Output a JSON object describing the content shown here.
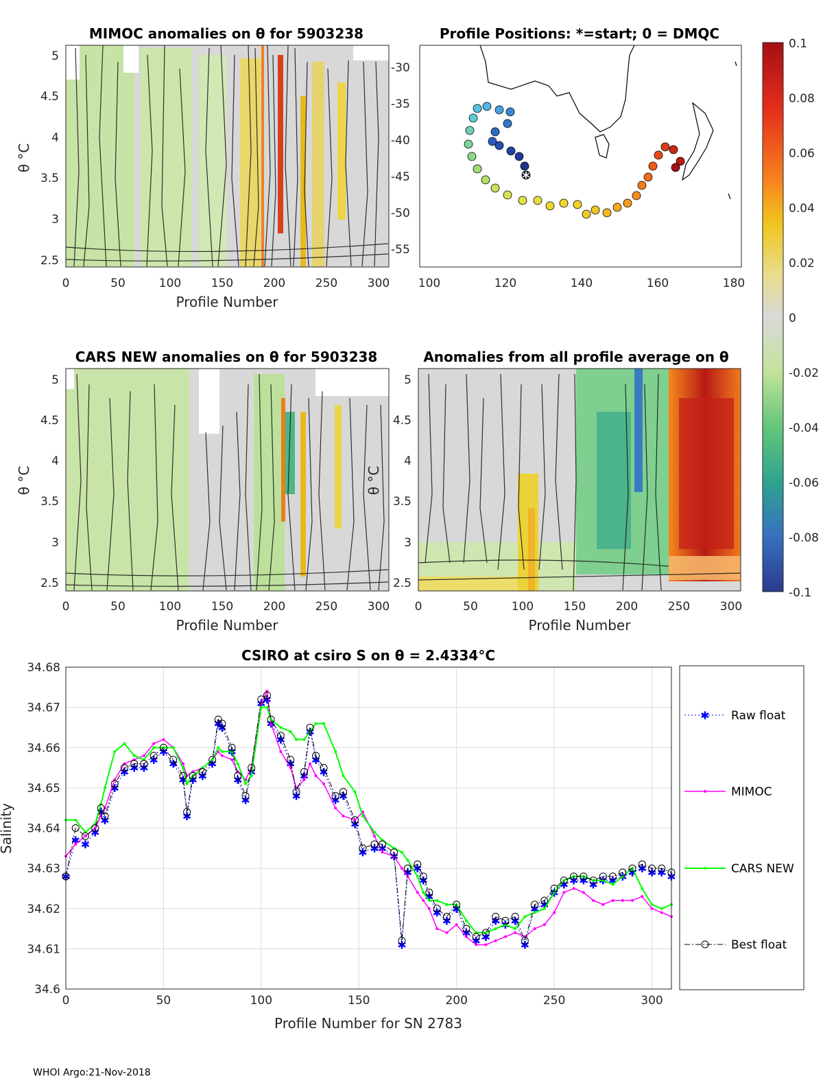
{
  "footer": "WHOI Argo:21-Nov-2018",
  "panels": {
    "mimoc": {
      "title": "MIMOC anomalies on θ  for 5903238",
      "ylabel": "θ °C",
      "xlabel": "Profile Number",
      "xticks": [
        "0",
        "50",
        "100",
        "150",
        "200",
        "250",
        "300"
      ],
      "yticks": [
        "5",
        "4.5",
        "4",
        "3.5",
        "3",
        "2.5"
      ]
    },
    "map": {
      "title": "Profile Positions: *=start; 0 = DMQC",
      "xticks": [
        "100",
        "120",
        "140",
        "160",
        "180"
      ],
      "yticks": [
        "-30",
        "-35",
        "-40",
        "-45",
        "-50",
        "-55"
      ]
    },
    "colorbar": {
      "ticks": [
        "0.1",
        "0.08",
        "0.06",
        "0.04",
        "0.02",
        "0",
        "-0.02",
        "-0.04",
        "-0.06",
        "-0.08",
        "-0.1"
      ]
    },
    "cars": {
      "title": "CARS NEW anomalies on θ for 5903238",
      "ylabel": "θ °C",
      "xlabel": "Profile Number",
      "xticks": [
        "0",
        "50",
        "100",
        "150",
        "200",
        "250",
        "300"
      ],
      "yticks": [
        "5",
        "4.5",
        "4",
        "3.5",
        "3",
        "2.5"
      ]
    },
    "avg": {
      "title": "Anomalies from all profile average on θ",
      "ylabel": "θ °C",
      "xlabel": "Profile Number",
      "xticks": [
        "0",
        "50",
        "100",
        "150",
        "200",
        "250",
        "300"
      ],
      "yticks": [
        "5",
        "4.5",
        "4",
        "3.5",
        "3",
        "2.5"
      ]
    }
  },
  "chart_data": {
    "type": "line",
    "title": "CSIRO at csiro S on θ = 2.4334°C",
    "xlabel": "Profile Number for SN 2783",
    "ylabel": "Salinity",
    "xlim": [
      0,
      310
    ],
    "ylim": [
      34.6,
      34.68
    ],
    "xticks": [
      0,
      50,
      100,
      150,
      200,
      250,
      300
    ],
    "yticks": [
      34.6,
      34.61,
      34.62,
      34.63,
      34.64,
      34.65,
      34.66,
      34.67,
      34.68
    ],
    "ytick_labels": [
      "34.6",
      "34.61",
      "34.62",
      "34.63",
      "34.64",
      "34.65",
      "34.66",
      "34.67",
      "34.68"
    ],
    "x": [
      0,
      5,
      10,
      15,
      18,
      20,
      25,
      30,
      35,
      40,
      45,
      50,
      55,
      60,
      62,
      65,
      70,
      75,
      78,
      80,
      85,
      88,
      92,
      95,
      100,
      103,
      105,
      110,
      115,
      118,
      122,
      125,
      128,
      132,
      138,
      142,
      148,
      152,
      158,
      162,
      168,
      172,
      175,
      180,
      183,
      186,
      190,
      195,
      200,
      205,
      210,
      215,
      220,
      225,
      230,
      235,
      240,
      245,
      250,
      255,
      260,
      265,
      270,
      275,
      280,
      285,
      290,
      295,
      300,
      305,
      310
    ],
    "series": [
      {
        "name": "Raw float",
        "color": "#0000ff",
        "values": [
          34.628,
          34.637,
          34.636,
          34.639,
          34.644,
          34.642,
          34.65,
          34.654,
          34.655,
          34.655,
          34.657,
          34.659,
          34.656,
          34.652,
          34.643,
          34.652,
          34.653,
          34.656,
          34.666,
          34.665,
          34.659,
          34.652,
          34.647,
          34.654,
          34.671,
          34.672,
          34.666,
          34.662,
          34.656,
          34.648,
          34.653,
          34.664,
          34.657,
          34.654,
          34.647,
          34.648,
          34.641,
          34.634,
          34.635,
          34.635,
          34.633,
          34.611,
          34.629,
          34.63,
          34.627,
          34.623,
          34.619,
          34.617,
          34.62,
          34.614,
          34.612,
          34.613,
          34.617,
          34.616,
          34.617,
          34.611,
          34.62,
          34.621,
          34.624,
          34.626,
          34.627,
          34.627,
          34.626,
          34.627,
          34.627,
          34.628,
          34.629,
          34.63,
          34.629,
          34.629,
          34.628
        ]
      },
      {
        "name": "MIMOC",
        "color": "#ff00ff",
        "values": [
          34.633,
          34.636,
          34.638,
          34.64,
          34.643,
          34.645,
          34.652,
          34.656,
          34.657,
          34.658,
          34.661,
          34.662,
          34.66,
          34.656,
          34.653,
          34.654,
          34.655,
          34.657,
          34.659,
          34.658,
          34.657,
          34.654,
          34.652,
          34.655,
          34.671,
          34.674,
          34.666,
          34.659,
          34.655,
          34.65,
          34.652,
          34.656,
          34.653,
          34.651,
          34.645,
          34.643,
          34.642,
          34.644,
          34.638,
          34.634,
          34.633,
          34.63,
          34.628,
          34.624,
          34.622,
          34.62,
          34.615,
          34.614,
          34.616,
          34.613,
          34.611,
          34.611,
          34.612,
          34.613,
          34.614,
          34.613,
          34.615,
          34.616,
          34.619,
          34.624,
          34.625,
          34.624,
          34.622,
          34.621,
          34.622,
          34.622,
          34.622,
          34.623,
          34.62,
          34.619,
          34.618
        ]
      },
      {
        "name": "CARS NEW",
        "color": "#00ff00",
        "values": [
          34.642,
          34.642,
          34.639,
          34.641,
          34.646,
          34.65,
          34.659,
          34.661,
          34.658,
          34.657,
          34.66,
          34.66,
          34.66,
          34.655,
          34.651,
          34.653,
          34.655,
          34.657,
          34.66,
          34.659,
          34.659,
          34.656,
          34.651,
          34.653,
          34.67,
          34.67,
          34.667,
          34.665,
          34.664,
          34.662,
          34.662,
          34.664,
          34.666,
          34.666,
          34.659,
          34.653,
          34.649,
          34.643,
          34.639,
          34.637,
          34.635,
          34.634,
          34.632,
          34.628,
          34.624,
          34.622,
          34.622,
          34.621,
          34.621,
          34.617,
          34.614,
          34.614,
          34.615,
          34.616,
          34.615,
          34.618,
          34.619,
          34.62,
          34.624,
          34.627,
          34.628,
          34.628,
          34.627,
          34.627,
          34.626,
          34.628,
          34.63,
          34.625,
          34.621,
          34.62,
          34.621
        ]
      },
      {
        "name": "Best float",
        "color": "#000000",
        "values": [
          34.628,
          34.64,
          34.638,
          34.64,
          34.645,
          34.643,
          34.651,
          34.655,
          34.656,
          34.656,
          34.658,
          34.66,
          34.657,
          34.653,
          34.644,
          34.653,
          34.654,
          34.657,
          34.667,
          34.666,
          34.66,
          34.653,
          34.648,
          34.655,
          34.672,
          34.673,
          34.667,
          34.663,
          34.657,
          34.649,
          34.654,
          34.665,
          34.658,
          34.655,
          34.648,
          34.649,
          34.642,
          34.635,
          34.636,
          34.636,
          34.634,
          34.612,
          34.63,
          34.631,
          34.628,
          34.624,
          34.62,
          34.618,
          34.621,
          34.615,
          34.613,
          34.614,
          34.618,
          34.617,
          34.618,
          34.612,
          34.621,
          34.622,
          34.625,
          34.627,
          34.628,
          34.628,
          34.627,
          34.628,
          34.628,
          34.629,
          34.63,
          34.631,
          34.63,
          34.63,
          34.629
        ]
      }
    ]
  }
}
